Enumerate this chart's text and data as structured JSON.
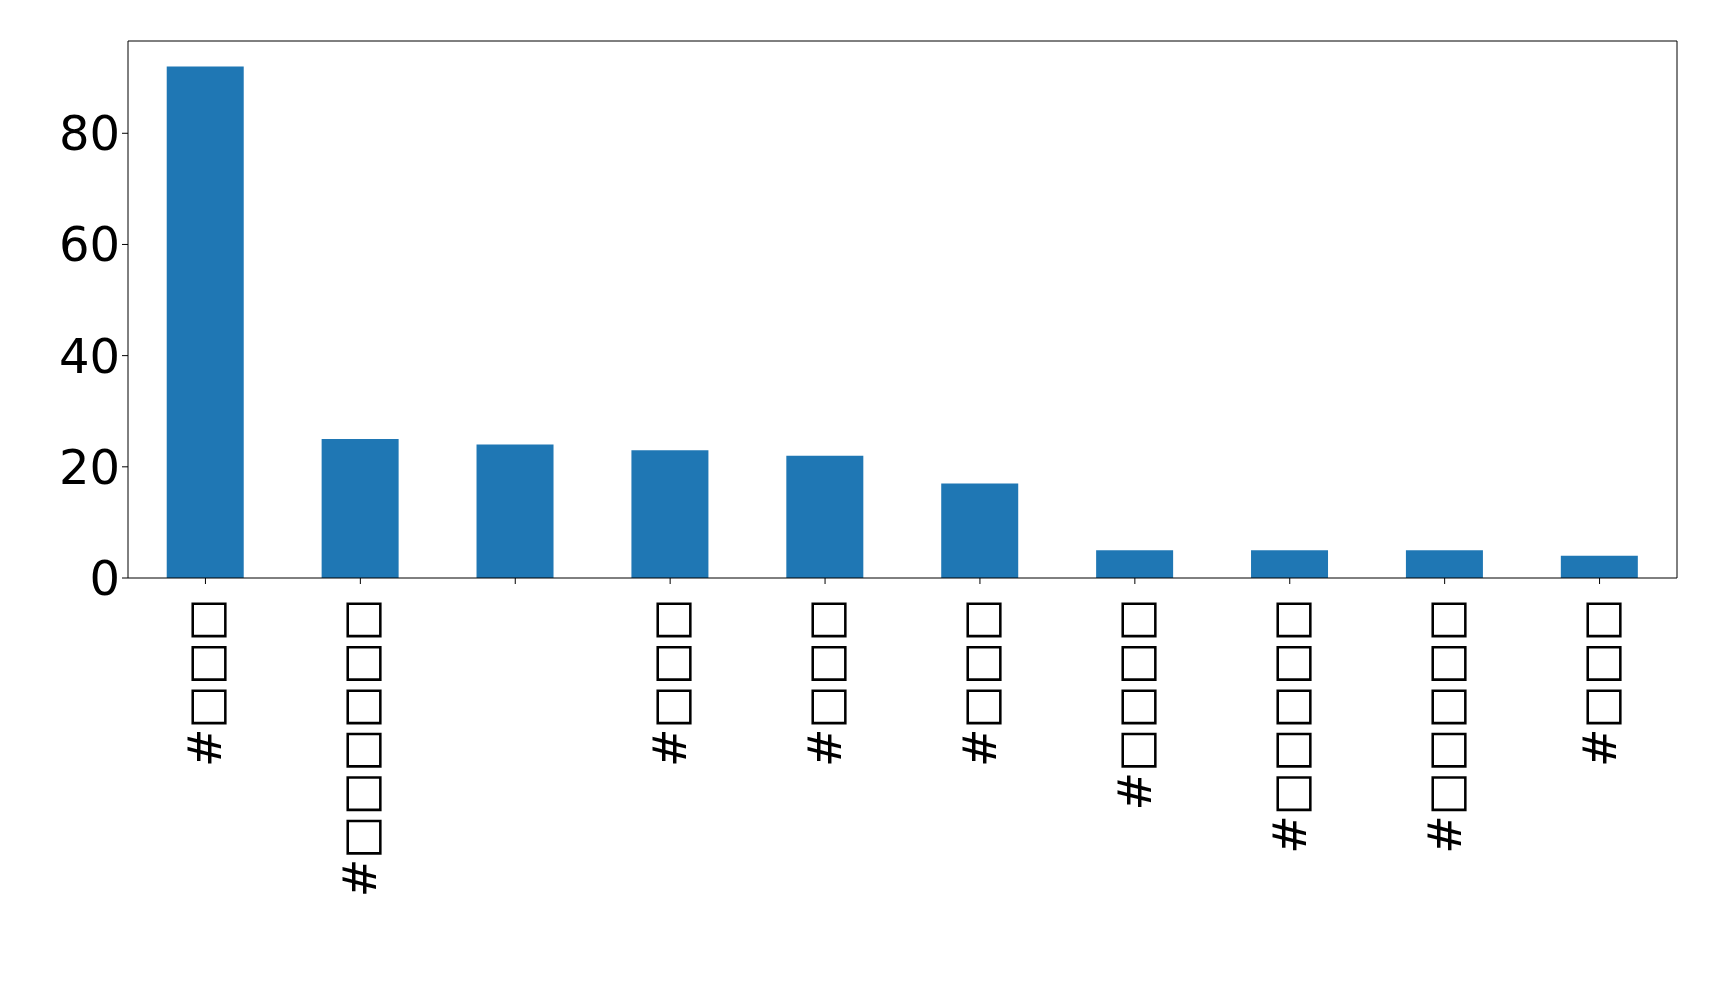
{
  "chart_data": {
    "type": "bar",
    "categories": [
      "#□□□",
      "#□□□□□□",
      null,
      "#□□□",
      "#□□□",
      "#□□□",
      "#□□□□",
      "#□□□□□",
      "#□□□□□",
      "#□□□"
    ],
    "values": [
      92,
      25,
      24,
      23,
      22,
      17,
      5,
      5,
      5,
      4
    ],
    "color": "#1f77b4",
    "ylim": [
      0,
      96.6
    ],
    "yticks": [
      0,
      20,
      40,
      60,
      80
    ],
    "grid": false,
    "legend": false
  }
}
